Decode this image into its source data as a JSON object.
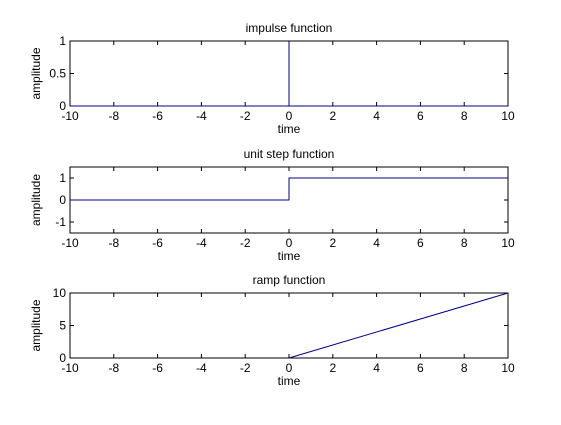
{
  "figure": {
    "background": "#ffffff",
    "line_color": "#00008b",
    "axis_color": "#000000"
  },
  "chart_data": [
    {
      "type": "line",
      "title": "impulse function",
      "xlabel": "time",
      "ylabel": "amplitude",
      "xlim": [
        -10,
        10
      ],
      "ylim": [
        0,
        1
      ],
      "xticks": [
        "-10",
        "-8",
        "-6",
        "-4",
        "-2",
        "0",
        "2",
        "4",
        "6",
        "8",
        "10"
      ],
      "yticks": [
        "0",
        "0.5",
        "1"
      ],
      "grid": false,
      "series": [
        {
          "x": [
            -10,
            0,
            0,
            0,
            10
          ],
          "y": [
            0,
            0,
            1,
            0,
            0
          ]
        }
      ]
    },
    {
      "type": "line",
      "title": "unit step function",
      "xlabel": "time",
      "ylabel": "amplitude",
      "xlim": [
        -10,
        10
      ],
      "ylim": [
        -1.5,
        1.5
      ],
      "xticks": [
        "-10",
        "-8",
        "-6",
        "-4",
        "-2",
        "0",
        "2",
        "4",
        "6",
        "8",
        "10"
      ],
      "yticks": [
        "-1",
        "0",
        "1"
      ],
      "grid": false,
      "series": [
        {
          "x": [
            -10,
            0,
            0,
            10
          ],
          "y": [
            0,
            0,
            1,
            1
          ]
        }
      ]
    },
    {
      "type": "line",
      "title": "ramp function",
      "xlabel": "time",
      "ylabel": "amplitude",
      "xlim": [
        -10,
        10
      ],
      "ylim": [
        0,
        10
      ],
      "xticks": [
        "-10",
        "-8",
        "-6",
        "-4",
        "-2",
        "0",
        "2",
        "4",
        "6",
        "8",
        "10"
      ],
      "yticks": [
        "0",
        "5",
        "10"
      ],
      "grid": false,
      "series": [
        {
          "x": [
            0,
            10
          ],
          "y": [
            0,
            10
          ]
        }
      ]
    }
  ]
}
